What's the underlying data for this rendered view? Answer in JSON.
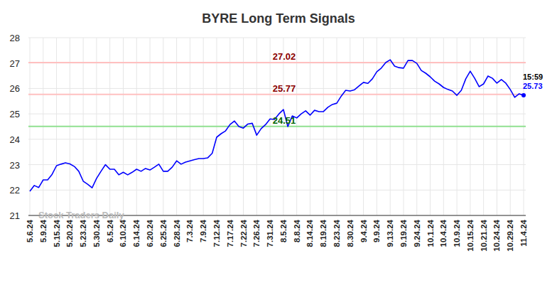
{
  "chart_data": {
    "type": "line",
    "title": "BYRE Long Term Signals",
    "categories": [
      "5.6.24",
      null,
      null,
      "5.9.24",
      null,
      null,
      "5.15.24",
      null,
      null,
      "5.20.24",
      null,
      null,
      "5.23.24",
      null,
      null,
      "5.30.24",
      null,
      null,
      "6.5.24",
      null,
      null,
      "6.10.24",
      null,
      null,
      "6.14.24",
      null,
      null,
      "6.20.24",
      null,
      null,
      "6.25.24",
      null,
      null,
      "6.28.24",
      null,
      null,
      "7.3.24",
      null,
      null,
      "7.9.24",
      null,
      null,
      "7.12.24",
      null,
      null,
      "7.17.24",
      null,
      null,
      "7.22.24",
      null,
      null,
      "7.26.24",
      null,
      null,
      "7.31.24",
      null,
      null,
      "8.5.24",
      null,
      null,
      "8.8.24",
      null,
      null,
      "8.14.24",
      null,
      null,
      "8.19.24",
      null,
      null,
      "8.23.24",
      null,
      null,
      "8.30.24",
      null,
      null,
      "9.4.24",
      null,
      null,
      "9.9.24",
      null,
      null,
      "9.13.24",
      null,
      null,
      "9.19.24",
      null,
      null,
      "9.24.24",
      null,
      null,
      "10.1.24",
      null,
      null,
      "10.4.24",
      null,
      null,
      "10.9.24",
      null,
      null,
      "10.15.24",
      null,
      null,
      "10.21.24",
      null,
      null,
      "10.24.24",
      null,
      null,
      "10.29.24",
      null,
      null,
      "11.4.24"
    ],
    "values": [
      21.95,
      22.18,
      22.1,
      22.4,
      22.4,
      22.62,
      22.96,
      23.02,
      23.07,
      23.03,
      22.93,
      22.74,
      22.35,
      22.23,
      22.09,
      22.46,
      22.74,
      23.0,
      22.82,
      22.82,
      22.6,
      22.7,
      22.6,
      22.7,
      22.82,
      22.74,
      22.85,
      22.79,
      22.9,
      23.02,
      22.74,
      22.74,
      22.9,
      23.15,
      23.02,
      23.1,
      23.15,
      23.2,
      23.24,
      23.24,
      23.27,
      23.45,
      24.08,
      24.22,
      24.33,
      24.58,
      24.72,
      24.5,
      24.44,
      24.6,
      24.63,
      24.16,
      24.42,
      24.58,
      24.8,
      24.78,
      25.0,
      25.17,
      24.5,
      24.92,
      24.84,
      25.0,
      25.12,
      24.95,
      25.14,
      25.09,
      25.09,
      25.26,
      25.37,
      25.42,
      25.7,
      25.93,
      25.9,
      25.95,
      26.1,
      26.24,
      26.2,
      26.38,
      26.66,
      26.8,
      27.02,
      27.13,
      26.88,
      26.82,
      26.8,
      27.1,
      27.1,
      26.99,
      26.71,
      26.6,
      26.46,
      26.29,
      26.18,
      26.04,
      25.96,
      25.9,
      25.73,
      25.93,
      26.38,
      26.68,
      26.4,
      26.07,
      26.18,
      26.49,
      26.4,
      26.21,
      26.35,
      26.21,
      25.96,
      25.65,
      25.79,
      25.73
    ],
    "color": "#0000ff",
    "ylim": [
      21,
      28
    ],
    "yticks": [
      21,
      22,
      23,
      24,
      25,
      26,
      27,
      28
    ],
    "grid": true,
    "reference_lines": [
      {
        "value": 27.02,
        "color": "#ffc0c0",
        "label_color": "#8b0000"
      },
      {
        "value": 25.77,
        "color": "#ffc0c0",
        "label_color": "#8b0000"
      },
      {
        "value": 24.51,
        "color": "#90e090",
        "label_color": "#006400"
      }
    ],
    "last_time": "15:59",
    "watermark": "Stock Traders Daily"
  }
}
